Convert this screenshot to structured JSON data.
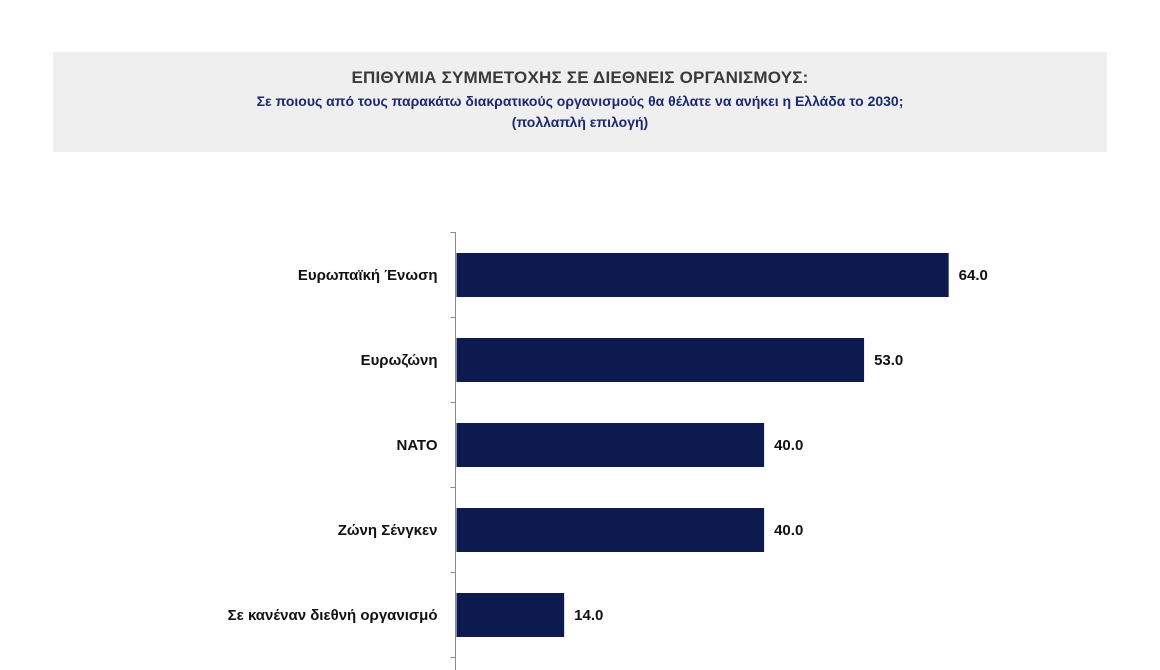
{
  "header": {
    "title": "ΕΠΙΘΥΜΙΑ ΣΥΜΜΕΤΟΧΗΣ ΣΕ ΔΙΕΘΝΕΙΣ ΟΡΓΑΝΙΣΜΟΥΣ:",
    "subtitle": "Σε ποιους από τους παρακάτω διακρατικούς οργανισμούς θα θέλατε να ανήκει η Ελλάδα το 2030;",
    "note": "(πολλαπλή επιλογή)"
  },
  "colors": {
    "bar": "#0d1a4f",
    "header_bg": "#efefef",
    "subtitle": "#1a2a6e"
  },
  "chart_data": {
    "type": "bar",
    "orientation": "horizontal",
    "title": "ΕΠΙΘΥΜΙΑ ΣΥΜΜΕΤΟΧΗΣ ΣΕ ΔΙΕΘΝΕΙΣ ΟΡΓΑΝΙΣΜΟΥΣ:",
    "categories": [
      "Ευρωπαϊκή Ένωση",
      "Ευρωζώνη",
      "ΝΑΤΟ",
      "Ζώνη Σένγκεν",
      "Σε κανέναν διεθνή οργανισμό"
    ],
    "values": [
      64.0,
      53.0,
      40.0,
      40.0,
      14.0
    ],
    "value_labels": [
      "64.0",
      "53.0",
      "40.0",
      "40.0",
      "14.0"
    ],
    "xlim": [
      0,
      100
    ],
    "grid": false,
    "legend": "none"
  }
}
